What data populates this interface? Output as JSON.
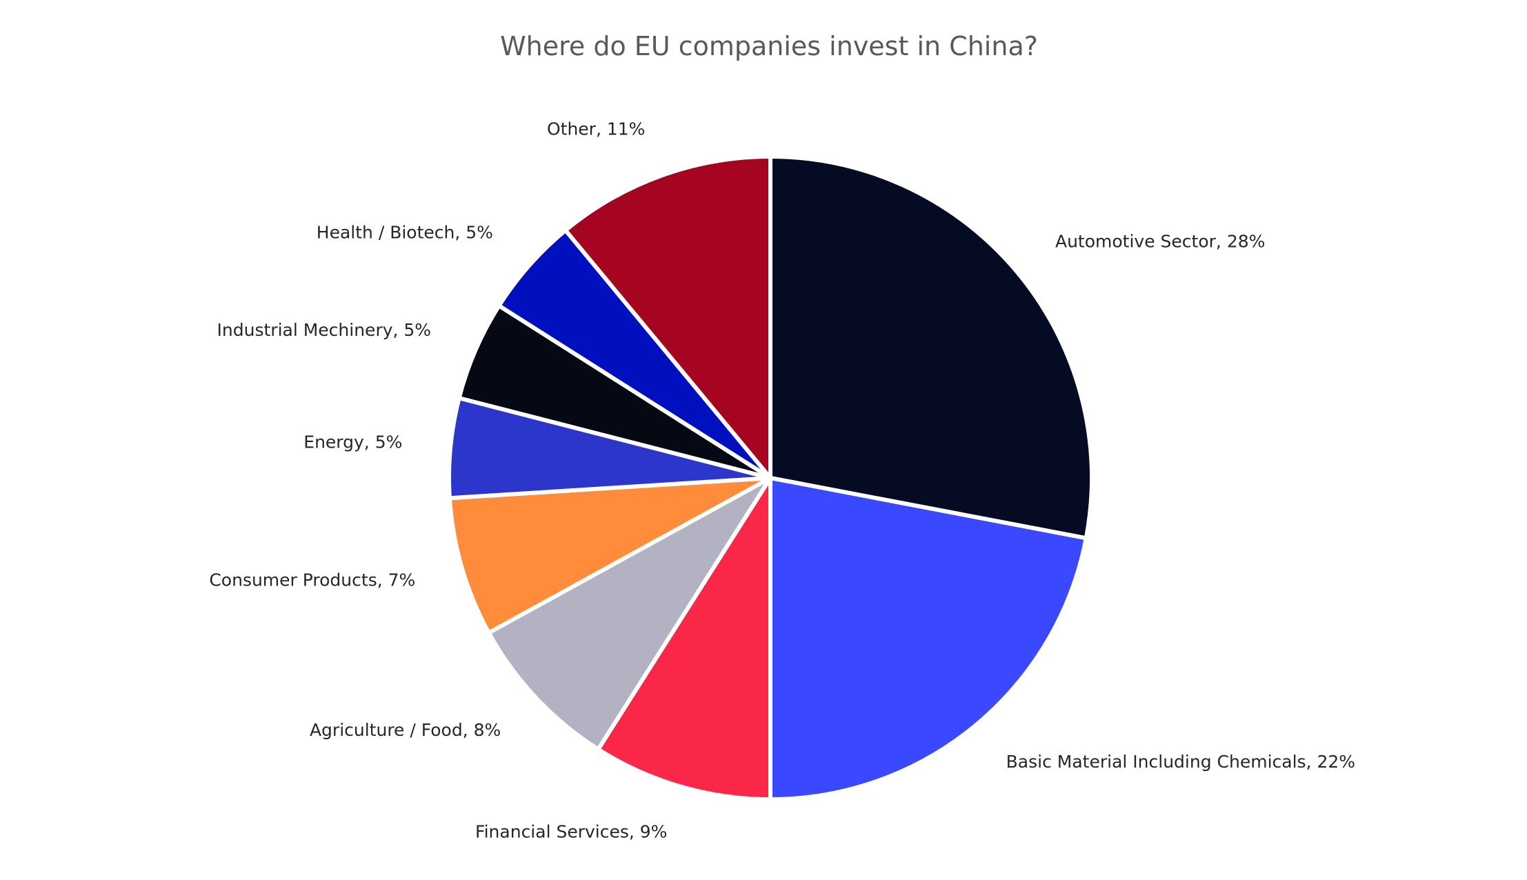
{
  "chart_data": {
    "type": "pie",
    "title": "Where do EU companies invest in China?",
    "slices": [
      {
        "label": "Automotive Sector, 28%",
        "name": "Automotive Sector",
        "value": 28,
        "color": "#060B24"
      },
      {
        "label": "Basic Material Including Chemicals, 22%",
        "name": "Basic Material Including Chemicals",
        "value": 22,
        "color": "#3A49FF"
      },
      {
        "label": "Financial Services, 9%",
        "name": "Financial Services",
        "value": 9,
        "color": "#FB2748"
      },
      {
        "label": "Agriculture / Food, 8%",
        "name": "Agriculture / Food",
        "value": 8,
        "color": "#B2B2C2"
      },
      {
        "label": "Consumer Products, 7%",
        "name": "Consumer Products",
        "value": 7,
        "color": "#FF8C3A"
      },
      {
        "label": "Energy, 5%",
        "name": "Energy",
        "value": 5,
        "color": "#2C36CA"
      },
      {
        "label": "Industrial Mechinery, 5%",
        "name": "Industrial Mechinery",
        "value": 5,
        "color": "#050913"
      },
      {
        "label": "Health / Biotech, 5%",
        "name": "Health / Biotech",
        "value": 5,
        "color": "#0010BE"
      },
      {
        "label": "Other, 11%",
        "name": "Other",
        "value": 11,
        "color": "#A50520"
      }
    ],
    "start": "12 o'clock",
    "direction": "clockwise",
    "legend": "none (direct labels)",
    "background": "#FFFFFF"
  }
}
